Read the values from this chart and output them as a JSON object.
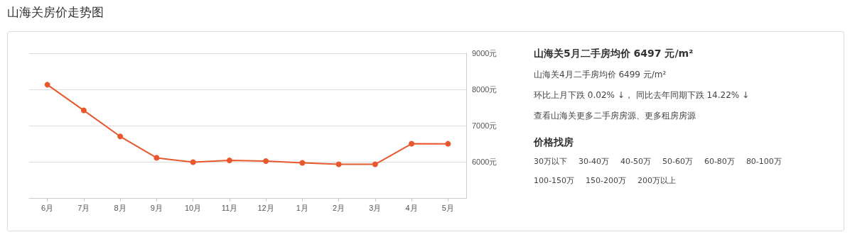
{
  "chart_data": [
    {
      "type": "line",
      "title": "山海关房价走势图",
      "categories": [
        "6月",
        "7月",
        "8月",
        "9月",
        "10月",
        "11月",
        "12月",
        "1月",
        "2月",
        "3月",
        "4月",
        "5月"
      ],
      "series": [
        {
          "color": "#e8582c",
          "values": [
            8130,
            7420,
            6700,
            6110,
            5990,
            6040,
            6020,
            5970,
            5930,
            5930,
            6499,
            6497
          ]
        }
      ],
      "ylim": [
        5000,
        9000
      ],
      "yticks": [
        {
          "value": 5000,
          "label": null
        },
        {
          "value": 6000,
          "label": "6000元"
        },
        {
          "value": 7000,
          "label": "7000元"
        },
        {
          "value": 8000,
          "label": "8000元"
        },
        {
          "value": 9000,
          "label": "9000元"
        }
      ],
      "grid": "y",
      "marker": "circle",
      "line_style": "solid",
      "annotations": [
        "山海关5月二手房均价 6497 元/m²",
        "山海关4月二手房均价 6499 元/m²",
        "环比上月下跌 0.02% ↓， 同比去年同期下跌 14.22% ↓",
        "查看山海关更多二手房房源、更多租房房源"
      ]
    },
    {
      "type": "other",
      "title": "价格找房",
      "annotations": [
        "30万以下",
        "30-40万",
        "40-50万",
        "50-60万",
        "60-80万",
        "80-100万",
        "100-150万",
        "150-200万",
        "200万以上"
      ]
    }
  ]
}
